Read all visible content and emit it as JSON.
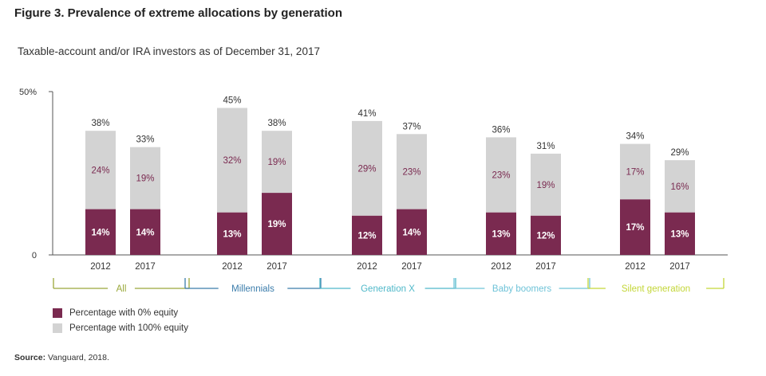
{
  "title": "Figure 3. Prevalence of extreme allocations by generation",
  "subtitle": "Taxable-account and/or IRA investors as of December 31, 2017",
  "source": {
    "label": "Source:",
    "text": "Vanguard, 2018."
  },
  "colors": {
    "zero_equity": "#7a2a50",
    "hundred_equity": "#d3d3d3"
  },
  "chart_data": {
    "type": "bar",
    "stacked": true,
    "ylim": [
      0,
      50
    ],
    "ytick_labels": [
      "0",
      "50%"
    ],
    "ytick_values": [
      0,
      50
    ],
    "groups": [
      {
        "name": "All",
        "color": "#9aa83a",
        "years": [
          "2012",
          "2017"
        ],
        "zero": [
          14,
          14
        ],
        "hundred": [
          24,
          19
        ],
        "total": [
          38,
          33
        ]
      },
      {
        "name": "Millennials",
        "color": "#3a7cab",
        "years": [
          "2012",
          "2017"
        ],
        "zero": [
          13,
          19
        ],
        "hundred": [
          32,
          19
        ],
        "total": [
          45,
          38
        ]
      },
      {
        "name": "Generation X",
        "color": "#4fb8c9",
        "years": [
          "2012",
          "2017"
        ],
        "zero": [
          12,
          14
        ],
        "hundred": [
          29,
          23
        ],
        "total": [
          41,
          37
        ]
      },
      {
        "name": "Baby boomers",
        "color": "#6fc3d8",
        "years": [
          "2012",
          "2017"
        ],
        "zero": [
          13,
          12
        ],
        "hundred": [
          23,
          19
        ],
        "total": [
          36,
          31
        ]
      },
      {
        "name": "Silent generation",
        "color": "#c3d637",
        "years": [
          "2012",
          "2017"
        ],
        "zero": [
          17,
          13
        ],
        "hundred": [
          17,
          16
        ],
        "total": [
          34,
          29
        ]
      }
    ],
    "series": [
      {
        "name": "Percentage with 0% equity",
        "key": "zero"
      },
      {
        "name": "Percentage with 100% equity",
        "key": "hundred"
      }
    ]
  }
}
